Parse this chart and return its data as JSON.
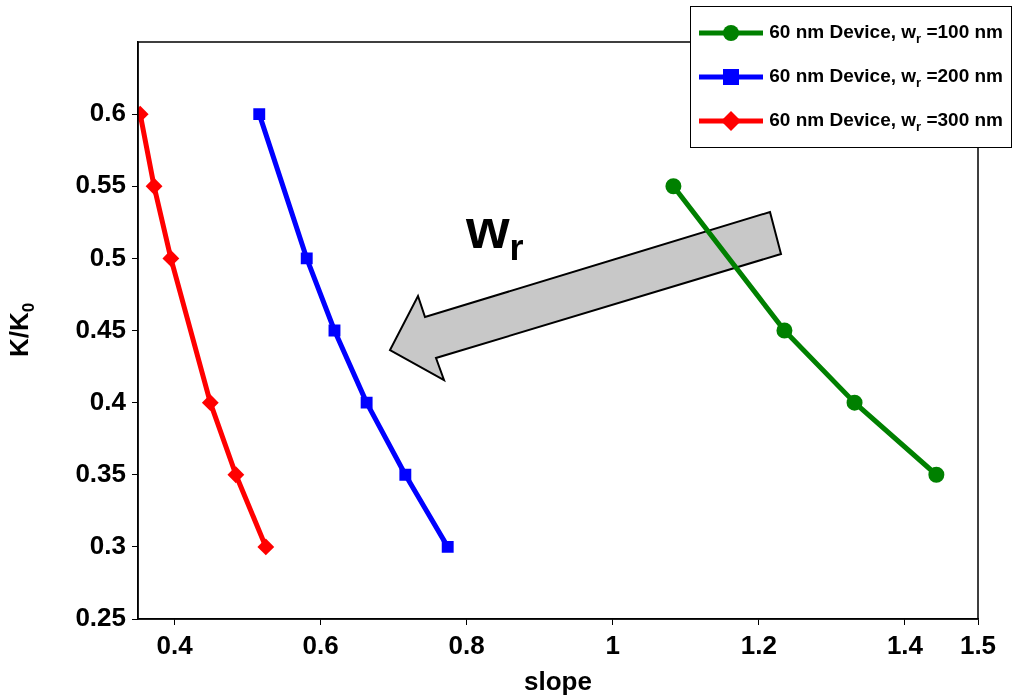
{
  "chart_data": {
    "type": "line",
    "xlabel": "slope",
    "ylabel": "K/K$_{0}$",
    "xlim": [
      0.35,
      1.5
    ],
    "xticks": [
      0.4,
      0.6,
      0.8,
      1,
      1.2,
      1.4,
      1.5
    ],
    "ylim": [
      0.25,
      0.65
    ],
    "yticks": [
      0.25,
      0.3,
      0.35,
      0.4,
      0.45,
      0.5,
      0.55,
      0.6
    ],
    "grid": false,
    "legend": "top right",
    "line_style": "solid",
    "annotations": [
      "w$_{r}$"
    ],
    "series": [
      {
        "name": "60 nm Device, w$_{r}$ =100 nm",
        "color": "#008000",
        "marker": "circle",
        "x": [
          1.083,
          1.235,
          1.331,
          1.443
        ],
        "values": [
          0.55,
          0.45,
          0.4,
          0.35
        ]
      },
      {
        "name": "60 nm Device, w$_{r}$ =200 nm",
        "color": "#0000ff",
        "marker": "square",
        "x": [
          0.516,
          0.581,
          0.619,
          0.663,
          0.716,
          0.774
        ],
        "values": [
          0.6,
          0.5,
          0.45,
          0.4,
          0.35,
          0.3
        ]
      },
      {
        "name": "60 nm Device, w$_{r}$ =300 nm",
        "color": "#ff0000",
        "marker": "diamond",
        "x": [
          0.353,
          0.372,
          0.395,
          0.449,
          0.484,
          0.525
        ],
        "values": [
          0.6,
          0.55,
          0.5,
          0.4,
          0.35,
          0.3
        ]
      }
    ]
  }
}
